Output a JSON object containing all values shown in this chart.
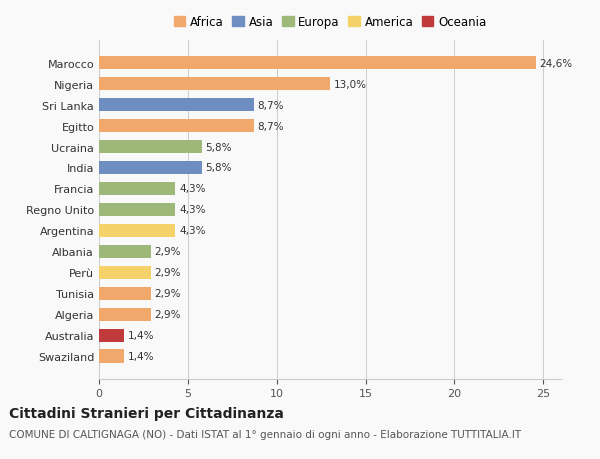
{
  "countries": [
    "Marocco",
    "Nigeria",
    "Sri Lanka",
    "Egitto",
    "Ucraina",
    "India",
    "Francia",
    "Regno Unito",
    "Argentina",
    "Albania",
    "Perù",
    "Tunisia",
    "Algeria",
    "Australia",
    "Swaziland"
  ],
  "values": [
    24.6,
    13.0,
    8.7,
    8.7,
    5.8,
    5.8,
    4.3,
    4.3,
    4.3,
    2.9,
    2.9,
    2.9,
    2.9,
    1.4,
    1.4
  ],
  "labels": [
    "24,6%",
    "13,0%",
    "8,7%",
    "8,7%",
    "5,8%",
    "5,8%",
    "4,3%",
    "4,3%",
    "4,3%",
    "2,9%",
    "2,9%",
    "2,9%",
    "2,9%",
    "1,4%",
    "1,4%"
  ],
  "continents": [
    "Africa",
    "Africa",
    "Asia",
    "Africa",
    "Europa",
    "Asia",
    "Europa",
    "Europa",
    "America",
    "Europa",
    "America",
    "Africa",
    "Africa",
    "Oceania",
    "Africa"
  ],
  "continent_colors": {
    "Africa": "#F0A96B",
    "Asia": "#6E8DC0",
    "Europa": "#9EB87A",
    "America": "#F5D16A",
    "Oceania": "#C0393B"
  },
  "legend_order": [
    "Africa",
    "Asia",
    "Europa",
    "America",
    "Oceania"
  ],
  "xlim": [
    0,
    26
  ],
  "xticks": [
    0,
    5,
    10,
    15,
    20,
    25
  ],
  "background_color": "#f9f9f9",
  "title": "Cittadini Stranieri per Cittadinanza",
  "subtitle": "COMUNE DI CALTIGNAGA (NO) - Dati ISTAT al 1° gennaio di ogni anno - Elaborazione TUTTITALIA.IT",
  "title_fontsize": 10,
  "subtitle_fontsize": 7.5,
  "bar_height": 0.65,
  "label_fontsize": 7.5,
  "ytick_fontsize": 8,
  "xtick_fontsize": 8,
  "legend_fontsize": 8.5
}
